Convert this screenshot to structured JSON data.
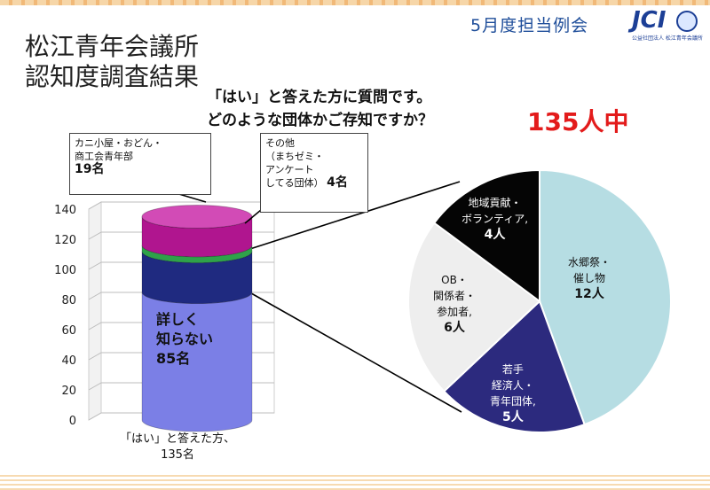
{
  "header": {
    "meeting": "5月度担当例会",
    "logo_text": "JCI",
    "logo_sub": "公益社団法人 松江青年会議所"
  },
  "title_lines": [
    "松江青年会議所",
    "認知度調査結果"
  ],
  "question_lines": [
    "「はい」と答えた方に質問です。",
    "どのような団体かご存知ですか？"
  ],
  "total_label": "135人中",
  "chart_data": [
    {
      "type": "bar",
      "stacked": true,
      "categories": [
        "「はい」と答えた方、135名"
      ],
      "ylim": [
        0,
        140
      ],
      "yticks": [
        0,
        20,
        40,
        60,
        80,
        100,
        120,
        140
      ],
      "grid": true,
      "series": [
        {
          "name": "詳しく知らない",
          "values": [
            85
          ],
          "color": "#7b7fe6",
          "label": "詳しく知らない 85名"
        },
        {
          "name": "",
          "values": [
            27
          ],
          "color": "#1f2a80",
          "label": ""
        },
        {
          "name": "その他（まちゼミ・アンケートしてる団体）",
          "values": [
            4
          ],
          "color": "#2fa24a",
          "label": "その他（まちゼミ・アンケートしてる団体）4名"
        },
        {
          "name": "カニ小屋・おどん・商工会青年部",
          "values": [
            19
          ],
          "color": "#b0158f",
          "label": "カニ小屋・おどん・商工会青年部 19名"
        }
      ]
    },
    {
      "type": "pie",
      "slices": [
        {
          "label": "水郷祭・催し物",
          "value": 12,
          "count_text": "12人",
          "color": "#b6dde3"
        },
        {
          "label": "若手経済人・青年団体,",
          "value": 5,
          "count_text": "5人",
          "color": "#2c2a7e"
        },
        {
          "label": "OB・関係者・参加者,",
          "value": 6,
          "count_text": "6人",
          "color": "#eeeeee"
        },
        {
          "label": "地域貢献・ボランティア,",
          "value": 4,
          "count_text": "4人",
          "color": "#050505"
        }
      ]
    }
  ],
  "callouts": {
    "left": {
      "lines": [
        "カニ小屋・おどん・",
        "商工会青年部"
      ],
      "count": "19名"
    },
    "right": {
      "lines": [
        "その他",
        "（まちゼミ・",
        "アンケート",
        "してる団体）"
      ],
      "count": "4名"
    }
  },
  "bar_inner_label": {
    "lines": [
      "詳しく",
      "知らない"
    ],
    "count": "85名"
  },
  "x_category_lines": [
    "「はい」と答えた方、",
    "135名"
  ],
  "pie_labels": [
    {
      "lines": [
        "水郷祭・",
        "催し物"
      ],
      "count": "12人"
    },
    {
      "lines": [
        "若手",
        "経済人・",
        "青年団体,"
      ],
      "count": "5人"
    },
    {
      "lines": [
        "OB・",
        "関係者・",
        "参加者,"
      ],
      "count": "6人"
    },
    {
      "lines": [
        "地域貢献・",
        "ボランティア,"
      ],
      "count": "4人"
    }
  ]
}
